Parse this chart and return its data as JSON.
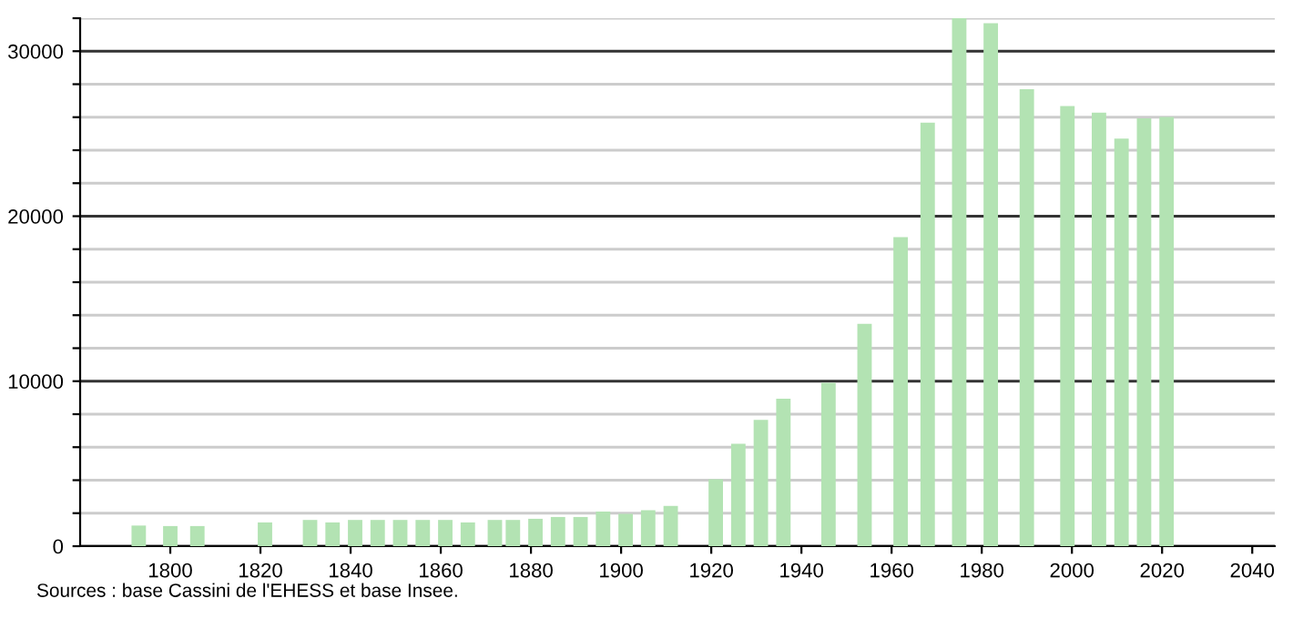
{
  "chart_data": {
    "type": "bar",
    "x": [
      1793,
      1800,
      1806,
      1821,
      1831,
      1836,
      1841,
      1846,
      1851,
      1856,
      1861,
      1866,
      1872,
      1876,
      1881,
      1886,
      1891,
      1896,
      1901,
      1906,
      1911,
      1921,
      1926,
      1931,
      1936,
      1946,
      1954,
      1962,
      1968,
      1975,
      1982,
      1990,
      1999,
      2006,
      2011,
      2016,
      2021
    ],
    "values": [
      1250,
      1220,
      1220,
      1440,
      1590,
      1440,
      1590,
      1590,
      1590,
      1590,
      1590,
      1440,
      1590,
      1590,
      1660,
      1770,
      1770,
      2100,
      1960,
      2180,
      2440,
      4060,
      6200,
      7650,
      8940,
      9900,
      13480,
      18730,
      25670,
      32000,
      31700,
      27700,
      26670,
      26270,
      24710,
      25930,
      26010
    ],
    "color": "#b3e3b3",
    "xlim": [
      1780,
      2045
    ],
    "xticks": [
      1800,
      1820,
      1840,
      1860,
      1880,
      1900,
      1920,
      1940,
      1960,
      1980,
      2000,
      2020,
      2040
    ],
    "ylim": [
      0,
      32000
    ],
    "yticks": [
      0,
      {
        "value": 2000,
        "label": null
      },
      {
        "value": 4000,
        "label": null
      },
      {
        "value": 6000,
        "label": null
      },
      {
        "value": 8000,
        "label": null
      },
      10000,
      {
        "value": 12000,
        "label": null
      },
      {
        "value": 14000,
        "label": null
      },
      {
        "value": 16000,
        "label": null
      },
      {
        "value": 18000,
        "label": null
      },
      20000,
      {
        "value": 22000,
        "label": null
      },
      {
        "value": 24000,
        "label": null
      },
      {
        "value": 26000,
        "label": null
      },
      {
        "value": 28000,
        "label": null
      },
      30000,
      {
        "value": 32000,
        "label": null
      }
    ],
    "grid": "y",
    "annotations": [
      "Sources : base Cassini de l'EHESS et base Insee."
    ]
  }
}
